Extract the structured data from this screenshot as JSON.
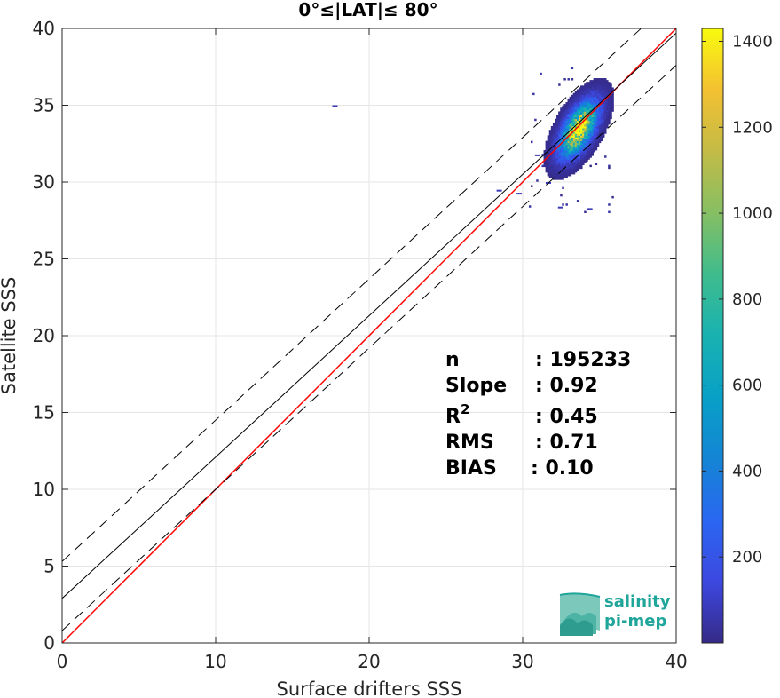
{
  "chart_data": {
    "type": "heatmap",
    "title": "0°≤|LAT|≤ 80°",
    "xlabel": "Surface drifters SSS",
    "ylabel": "Satellite SSS",
    "xlim": [
      0,
      40
    ],
    "ylim": [
      0,
      40
    ],
    "xticks": [
      "0",
      "10",
      "20",
      "30",
      "40"
    ],
    "yticks": [
      "0",
      "5",
      "10",
      "15",
      "20",
      "25",
      "30",
      "35",
      "40"
    ],
    "grid": true,
    "colorbar": {
      "range": [
        0,
        1430
      ],
      "ticks": [
        "200",
        "400",
        "600",
        "800",
        "1000",
        "1200",
        "1400"
      ],
      "tick_values": [
        200,
        400,
        600,
        800,
        1000,
        1200,
        1400
      ],
      "colormap": "parula"
    },
    "lines": [
      {
        "kind": "one-to-one",
        "color": "#ff0000",
        "style": "solid",
        "intercept": 0,
        "slope": 1
      },
      {
        "kind": "regression",
        "color": "#000000",
        "style": "solid",
        "intercept": 2.9,
        "slope": 0.92
      },
      {
        "kind": "regression-upper",
        "color": "#000000",
        "style": "dashed",
        "intercept": 5.3,
        "slope": 0.92
      },
      {
        "kind": "regression-lower",
        "color": "#000000",
        "style": "dashed",
        "intercept": 0.8,
        "slope": 0.92
      }
    ],
    "density_cluster": {
      "center": [
        33.6,
        33.4
      ],
      "spread_x": 0.9,
      "spread_y": 1.3,
      "correlation": 0.6,
      "peak_count": 1430,
      "outliers": [
        [
          17.6,
          34.9
        ],
        [
          28.3,
          29.4
        ],
        [
          32.3,
          28.3
        ],
        [
          34.2,
          28.2
        ],
        [
          29.6,
          29.2
        ],
        [
          30.8,
          31.7
        ],
        [
          31.5,
          29.9
        ]
      ]
    },
    "stats": {
      "n_label": "n",
      "n_value": ": 195233",
      "slope_label": "Slope",
      "slope_value": ": 0.92",
      "r2_label": "R",
      "r2_sup": "2",
      "r2_value": ": 0.45",
      "rms_label": "RMS",
      "rms_value": ": 0.71",
      "bias_label": "BIAS",
      "bias_value": ": 0.10"
    }
  },
  "logo": {
    "line1": "salinity",
    "line2": "pi-mep",
    "color": "#1fa59a"
  }
}
